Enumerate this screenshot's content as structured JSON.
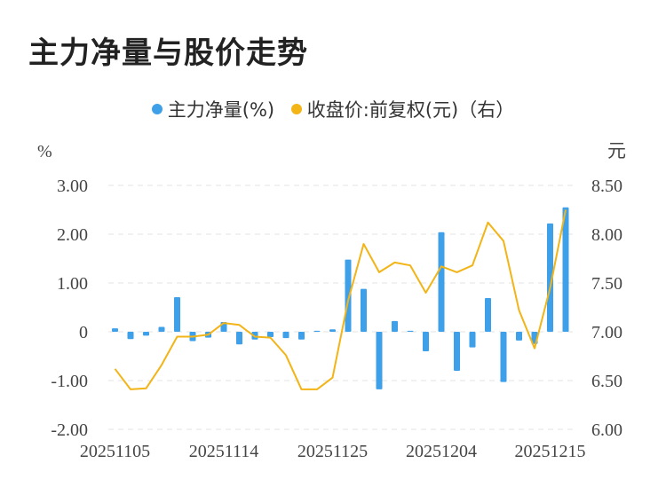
{
  "title": "主力净量与股价走势",
  "legend": {
    "series1": "主力净量(%)",
    "series2": "收盘价:前复权(元)（右）"
  },
  "colors": {
    "bar": "#3fa0ea",
    "line": "#f2b416",
    "grid": "#e3e3e3",
    "text": "#444444"
  },
  "chart_data": {
    "type": "bar+line",
    "left_axis_unit": "%",
    "right_axis_unit": "元",
    "y_left_lim": [
      -2.0,
      3.0
    ],
    "y_left_ticks": [
      "3.00",
      "2.00",
      "1.00",
      "0",
      "-1.00",
      "-2.00"
    ],
    "y_right_lim": [
      6.0,
      8.5
    ],
    "y_right_ticks": [
      "8.50",
      "8.00",
      "7.50",
      "7.00",
      "6.50",
      "6.00"
    ],
    "x_tick_labels": [
      "20251105",
      "20251114",
      "20251125",
      "20251204",
      "20251215"
    ],
    "x_tick_index": [
      0,
      7,
      14,
      21,
      28
    ],
    "grid": "horizontal dashed",
    "legend_position": "top-center",
    "series": [
      {
        "name": "主力净量(%)",
        "type": "bar",
        "axis": "left",
        "values": [
          0.07,
          -0.15,
          -0.08,
          0.1,
          0.71,
          -0.19,
          -0.12,
          0.2,
          -0.26,
          -0.16,
          -0.11,
          -0.13,
          -0.16,
          0.02,
          0.05,
          1.48,
          0.88,
          -1.18,
          0.22,
          0.02,
          -0.4,
          2.04,
          -0.8,
          -0.32,
          0.69,
          -1.03,
          -0.18,
          -0.25,
          2.22,
          2.55
        ]
      },
      {
        "name": "收盘价:前复权(元)（右）",
        "type": "line",
        "axis": "right",
        "values": [
          6.62,
          6.41,
          6.42,
          6.66,
          6.95,
          6.95,
          6.97,
          7.09,
          7.07,
          6.95,
          6.94,
          6.76,
          6.41,
          6.41,
          6.53,
          7.32,
          7.9,
          7.61,
          7.71,
          7.68,
          7.4,
          7.67,
          7.61,
          7.68,
          8.12,
          7.93,
          7.22,
          6.83,
          7.45,
          8.25
        ]
      }
    ]
  }
}
